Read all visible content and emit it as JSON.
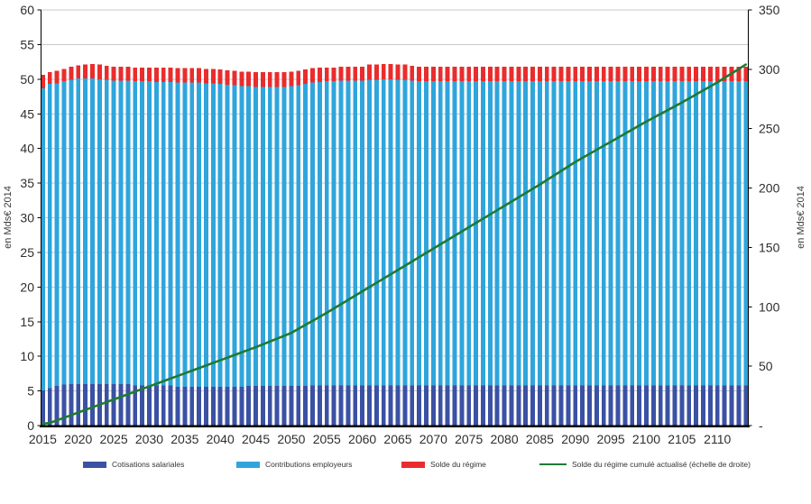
{
  "chart": {
    "left_axis_title": "en Mds€ 2014",
    "right_axis_title": "en Mds€ 2014",
    "left_tick_labels": [
      "60",
      "55",
      "50",
      "45",
      "40",
      "35",
      "30",
      "25",
      "20",
      "15",
      "10",
      "5",
      "0"
    ],
    "right_tick_labels": [
      "350",
      "300",
      "250",
      "200",
      "150",
      "100",
      "50",
      "-"
    ],
    "x_tick_labels": [
      "2015",
      "2020",
      "2025",
      "2030",
      "2035",
      "2040",
      "2045",
      "2050",
      "2055",
      "2060",
      "2065",
      "2070",
      "2075",
      "2080",
      "2085",
      "2090",
      "2095",
      "2100",
      "2105",
      "2110"
    ],
    "colors": {
      "cotisations": "#3B51A3",
      "contributions": "#2FA5DC",
      "solde": "#EA2C2C",
      "cumule": "#1F7A34",
      "gridline": "#C9C9C9",
      "axis": "#000000",
      "tick_text": "#2E2E2E"
    },
    "legend": [
      {
        "label": "Cotisations salariales",
        "swatch": "bar",
        "color": "#3B51A3"
      },
      {
        "label": "Contributions employeurs",
        "swatch": "bar",
        "color": "#2FA5DC"
      },
      {
        "label": "Solde du régime",
        "swatch": "bar",
        "color": "#EA2C2C"
      },
      {
        "label": "Solde du régime cumulé actualisé (échelle de droite)",
        "swatch": "line",
        "color": "#1F7A34"
      }
    ]
  },
  "chart_data": {
    "type": "bar",
    "subtype": "stacked-bars-with-line-overlay",
    "grid": true,
    "left_ylim": [
      0,
      60
    ],
    "right_ylim": [
      0,
      350
    ],
    "left_axis_label": "en Mds€ 2014",
    "right_axis_label": "en Mds€ 2014",
    "categories": [
      2015,
      2016,
      2017,
      2018,
      2019,
      2020,
      2021,
      2022,
      2023,
      2024,
      2025,
      2026,
      2027,
      2028,
      2029,
      2030,
      2031,
      2032,
      2033,
      2034,
      2035,
      2036,
      2037,
      2038,
      2039,
      2040,
      2041,
      2042,
      2043,
      2044,
      2045,
      2046,
      2047,
      2048,
      2049,
      2050,
      2051,
      2052,
      2053,
      2054,
      2055,
      2056,
      2057,
      2058,
      2059,
      2060,
      2061,
      2062,
      2063,
      2064,
      2065,
      2066,
      2067,
      2068,
      2069,
      2070,
      2071,
      2072,
      2073,
      2074,
      2075,
      2076,
      2077,
      2078,
      2079,
      2080,
      2081,
      2082,
      2083,
      2084,
      2085,
      2086,
      2087,
      2088,
      2089,
      2090,
      2091,
      2092,
      2093,
      2094,
      2095,
      2096,
      2097,
      2098,
      2099,
      2100,
      2101,
      2102,
      2103,
      2104,
      2105,
      2106,
      2107,
      2108,
      2109,
      2110,
      2111,
      2112,
      2113,
      2114
    ],
    "series": [
      {
        "name": "Cotisations salariales",
        "type": "bar",
        "axis": "left",
        "color": "#3B51A3",
        "values": [
          5.1,
          5.4,
          5.7,
          5.9,
          6.0,
          6.0,
          6.0,
          6.0,
          6.0,
          6.0,
          6.0,
          6.0,
          6.0,
          5.8,
          5.8,
          5.8,
          5.8,
          5.8,
          5.8,
          5.6,
          5.6,
          5.6,
          5.6,
          5.6,
          5.6,
          5.6,
          5.6,
          5.6,
          5.6,
          5.7,
          5.7,
          5.7,
          5.7,
          5.7,
          5.7,
          5.7,
          5.7,
          5.7,
          5.8,
          5.8,
          5.8,
          5.8,
          5.8,
          5.8,
          5.8,
          5.8,
          5.8,
          5.8,
          5.8,
          5.8,
          5.8,
          5.8,
          5.8,
          5.8,
          5.8,
          5.8,
          5.8,
          5.8,
          5.8,
          5.8,
          5.8,
          5.8,
          5.8,
          5.8,
          5.8,
          5.8,
          5.8,
          5.8,
          5.8,
          5.8,
          5.8,
          5.8,
          5.8,
          5.8,
          5.8,
          5.8,
          5.8,
          5.8,
          5.8,
          5.8,
          5.8,
          5.8,
          5.8,
          5.8,
          5.8,
          5.8,
          5.8,
          5.8,
          5.8,
          5.8,
          5.8,
          5.8,
          5.8,
          5.8,
          5.8,
          5.8,
          5.8,
          5.8,
          5.8,
          5.8
        ]
      },
      {
        "name": "Contributions employeurs",
        "type": "bar",
        "axis": "left",
        "color": "#2FA5DC",
        "values": [
          43.6,
          43.9,
          43.7,
          43.8,
          43.9,
          44.1,
          44.1,
          44.1,
          44.0,
          43.9,
          43.8,
          43.8,
          43.8,
          43.9,
          43.9,
          43.9,
          43.8,
          43.8,
          43.8,
          43.9,
          43.9,
          43.9,
          43.9,
          43.8,
          43.8,
          43.7,
          43.6,
          43.5,
          43.4,
          43.3,
          43.2,
          43.2,
          43.2,
          43.2,
          43.2,
          43.3,
          43.4,
          43.6,
          43.7,
          43.8,
          43.9,
          43.9,
          44.0,
          44.0,
          44.0,
          44.0,
          44.1,
          44.1,
          44.2,
          44.2,
          44.1,
          44.1,
          44.0,
          43.9,
          43.9,
          43.9,
          43.9,
          43.9,
          43.9,
          43.9,
          43.9,
          43.9,
          43.9,
          43.9,
          43.9,
          43.9,
          43.9,
          43.9,
          43.9,
          43.9,
          43.9,
          43.9,
          43.9,
          43.9,
          43.9,
          43.9,
          43.9,
          43.9,
          43.9,
          43.9,
          43.9,
          43.9,
          43.9,
          43.9,
          43.9,
          43.9,
          43.9,
          43.9,
          43.9,
          43.9,
          43.9,
          43.9,
          43.9,
          43.9,
          43.9,
          43.9,
          43.9,
          43.9,
          43.9,
          43.9
        ]
      },
      {
        "name": "Solde du régime",
        "type": "bar",
        "axis": "left",
        "color": "#EA2C2C",
        "values": [
          1.9,
          1.7,
          1.8,
          1.8,
          1.9,
          1.9,
          2.0,
          2.1,
          2.1,
          2.0,
          2.0,
          2.0,
          2.0,
          2.0,
          2.0,
          2.0,
          2.1,
          2.1,
          2.1,
          2.1,
          2.1,
          2.1,
          2.1,
          2.1,
          2.1,
          2.1,
          2.1,
          2.1,
          2.1,
          2.1,
          2.1,
          2.1,
          2.1,
          2.1,
          2.1,
          2.1,
          2.1,
          2.1,
          2.1,
          2.1,
          2.0,
          2.0,
          2.0,
          2.0,
          2.0,
          2.0,
          2.2,
          2.2,
          2.2,
          2.2,
          2.2,
          2.2,
          2.1,
          2.1,
          2.1,
          2.1,
          2.1,
          2.1,
          2.1,
          2.1,
          2.1,
          2.1,
          2.1,
          2.1,
          2.1,
          2.1,
          2.1,
          2.1,
          2.1,
          2.1,
          2.1,
          2.1,
          2.1,
          2.1,
          2.1,
          2.1,
          2.1,
          2.1,
          2.1,
          2.1,
          2.1,
          2.1,
          2.1,
          2.1,
          2.1,
          2.1,
          2.1,
          2.1,
          2.1,
          2.1,
          2.1,
          2.1,
          2.1,
          2.1,
          2.1,
          2.1,
          2.1,
          2.1,
          2.1,
          2.1
        ]
      },
      {
        "name": "Solde du régime cumulé actualisé (échelle de droite)",
        "type": "line",
        "axis": "right",
        "color": "#1F7A34",
        "values": [
          1.5,
          2.2,
          4.4,
          6.6,
          8.8,
          11,
          13.2,
          15.4,
          17.6,
          19.8,
          22,
          24.2,
          26.4,
          28.6,
          30.8,
          33,
          35.2,
          37.4,
          39.6,
          41.8,
          44,
          46.2,
          48.4,
          50.6,
          52.8,
          55,
          57.2,
          59.4,
          61.6,
          63.8,
          66,
          68.4,
          70.8,
          73.2,
          75.6,
          78,
          81.4,
          84.8,
          88.2,
          91.6,
          95,
          98.6,
          102.2,
          105.8,
          109.4,
          113,
          116.6,
          120.2,
          123.8,
          127.4,
          131,
          134.6,
          138.2,
          141.8,
          145.4,
          149,
          152.6,
          156.2,
          159.8,
          163.4,
          167,
          170.6,
          174.2,
          177.8,
          181.4,
          185,
          188.6,
          192.2,
          195.8,
          199.4,
          203,
          206.8,
          210.6,
          214.4,
          218.2,
          222,
          225.4,
          228.8,
          232.2,
          235.6,
          239,
          242.4,
          245.8,
          249.2,
          252.6,
          256,
          259.2,
          262.4,
          265.6,
          268.8,
          272,
          275.4,
          278.8,
          282.2,
          285.6,
          289,
          292.8,
          296.5,
          300.2,
          304
        ]
      }
    ]
  }
}
